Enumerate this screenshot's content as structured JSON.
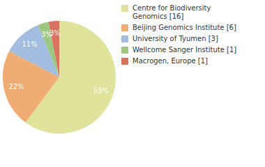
{
  "chart_data": {
    "type": "pie",
    "categories": [
      "Centre for Biodiversity Genomics [16]",
      "Beijing Genomics Institute [6]",
      "University of Tyumen [3]",
      "Wellcome Sanger Institute [1]",
      "Macrogen, Europe [1]"
    ],
    "values": [
      59,
      22,
      11,
      3,
      3
    ],
    "value_labels": [
      "59%",
      "22%",
      "11%",
      "3%",
      "3%"
    ],
    "colors": [
      "#dfe39c",
      "#f0ad73",
      "#a3bde0",
      "#9dc882",
      "#d9735f"
    ],
    "data_labels": true,
    "legend": "right"
  }
}
